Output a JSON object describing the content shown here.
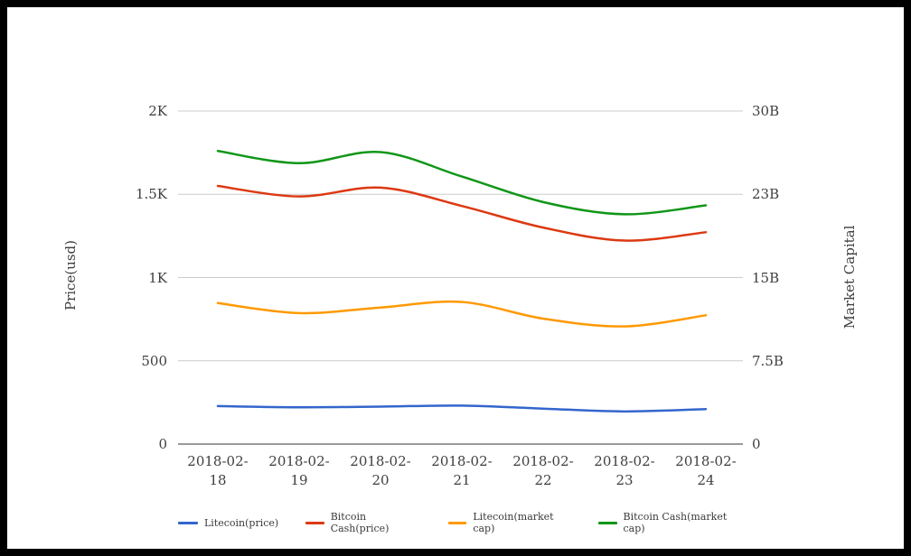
{
  "chart_data": {
    "type": "line",
    "x": [
      "2018-02-18",
      "2018-02-19",
      "2018-02-20",
      "2018-02-21",
      "2018-02-22",
      "2018-02-23",
      "2018-02-24"
    ],
    "series": [
      {
        "name": "Litecoin(price)",
        "yaxis": "left",
        "unit": "USD",
        "color": "#3366CC",
        "values": [
          228,
          221,
          225,
          231,
          213,
          196,
          210
        ]
      },
      {
        "name": "Bitcoin Cash(price)",
        "yaxis": "left",
        "unit": "USD",
        "color": "#DC3912",
        "values": [
          1550,
          1487,
          1540,
          1430,
          1300,
          1222,
          1272
        ]
      },
      {
        "name": "Litecoin(market cap)",
        "yaxis": "right",
        "unit": "USD billions",
        "color": "#FF9900",
        "values": [
          12.7,
          11.8,
          12.3,
          12.8,
          11.3,
          10.6,
          11.6
        ]
      },
      {
        "name": "Bitcoin Cash(market cap)",
        "yaxis": "right",
        "unit": "USD billions",
        "color": "#109618",
        "values": [
          26.4,
          25.3,
          26.3,
          24.1,
          21.8,
          20.7,
          21.5
        ]
      }
    ],
    "left_axis": {
      "title": "Price(usd)",
      "tick_values": [
        0,
        500,
        1000,
        1500,
        2000
      ],
      "tick_labels": [
        "0",
        "500",
        "1K",
        "1.5K",
        "2K"
      ],
      "range": [
        0,
        2000
      ]
    },
    "right_axis": {
      "title": "Market Capital",
      "tick_values": [
        0,
        7.5,
        15,
        22.5,
        30
      ],
      "tick_labels": [
        "0",
        "7.5B",
        "15B",
        "23B",
        "30B"
      ],
      "range": [
        0,
        30
      ]
    },
    "title": "",
    "xlabel": "",
    "legend_position": "bottom",
    "grid": true,
    "colors": {
      "grid": "#cccccc",
      "baseline": "#333333",
      "text": "#3f3f3f",
      "background": "#ffffff",
      "frame": "#000000"
    }
  }
}
